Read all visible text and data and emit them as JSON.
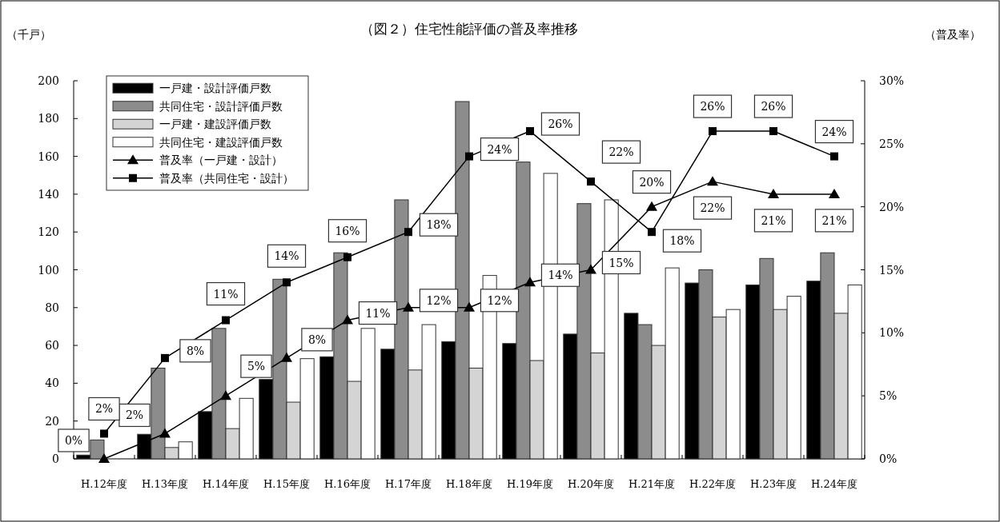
{
  "chart_data": {
    "type": "bar",
    "title": "（図２）住宅性能評価の普及率推移",
    "ylabel": "（千戸）",
    "y2label": "（普及率）",
    "categories": [
      "H.12年度",
      "H.13年度",
      "H.14年度",
      "H.15年度",
      "H.16年度",
      "H.17年度",
      "H.18年度",
      "H.19年度",
      "H.20年度",
      "H.21年度",
      "H.22年度",
      "H.23年度",
      "H.24年度"
    ],
    "ylim": [
      0,
      200
    ],
    "yticks": [
      0,
      20,
      40,
      60,
      80,
      100,
      120,
      140,
      160,
      180,
      200
    ],
    "y2lim": [
      0,
      30
    ],
    "y2ticks": [
      {
        "value": 0,
        "label": "0%"
      },
      {
        "value": 5,
        "label": "5%"
      },
      {
        "value": 10,
        "label": "10%"
      },
      {
        "value": 15,
        "label": "15%"
      },
      {
        "value": 20,
        "label": "20%"
      },
      {
        "value": 25,
        "label": "25%"
      },
      {
        "value": 30,
        "label": "30%"
      }
    ],
    "legend": "top left",
    "grid": false,
    "series": [
      {
        "name": "一戸建・設計評価戸数",
        "color": "#000000",
        "values": [
          2,
          13,
          25,
          42,
          54,
          58,
          62,
          61,
          66,
          77,
          93,
          92,
          94
        ]
      },
      {
        "name": "共同住宅・設計評価戸数",
        "color": "#8c8c8c",
        "values": [
          10,
          48,
          69,
          95,
          109,
          137,
          189,
          157,
          135,
          71,
          100,
          106,
          109
        ]
      },
      {
        "name": "一戸建・建設評価戸数",
        "color": "#d4d4d4",
        "values": [
          0,
          6,
          16,
          30,
          41,
          47,
          48,
          52,
          56,
          60,
          75,
          79,
          77
        ]
      },
      {
        "name": "共同住宅・建設評価戸数",
        "color": "#ffffff",
        "values": [
          0,
          9,
          32,
          53,
          69,
          71,
          97,
          151,
          137,
          101,
          79,
          86,
          92
        ]
      },
      {
        "name": "普及率（一戸建・設計）",
        "type": "line",
        "axis": "y2",
        "marker": "triangle",
        "color": "#000000",
        "values": [
          0,
          2,
          5,
          8,
          11,
          12,
          12,
          14,
          15,
          20,
          22,
          21,
          21
        ],
        "value_labels": [
          "0%",
          "2%",
          "5%",
          "8%",
          "11%",
          "12%",
          "12%",
          "14%",
          "15%",
          "20%",
          "22%",
          "21%",
          "21%"
        ]
      },
      {
        "name": "普及率（共同住宅・設計）",
        "type": "line",
        "axis": "y2",
        "marker": "square",
        "color": "#000000",
        "values": [
          2,
          8,
          11,
          14,
          16,
          18,
          24,
          26,
          22,
          18,
          26,
          26,
          24
        ],
        "value_labels": [
          "2%",
          "8%",
          "11%",
          "14%",
          "16%",
          "18%",
          "24%",
          "26%",
          "22%",
          "18%",
          "26%",
          "26%",
          "24%"
        ]
      }
    ]
  }
}
